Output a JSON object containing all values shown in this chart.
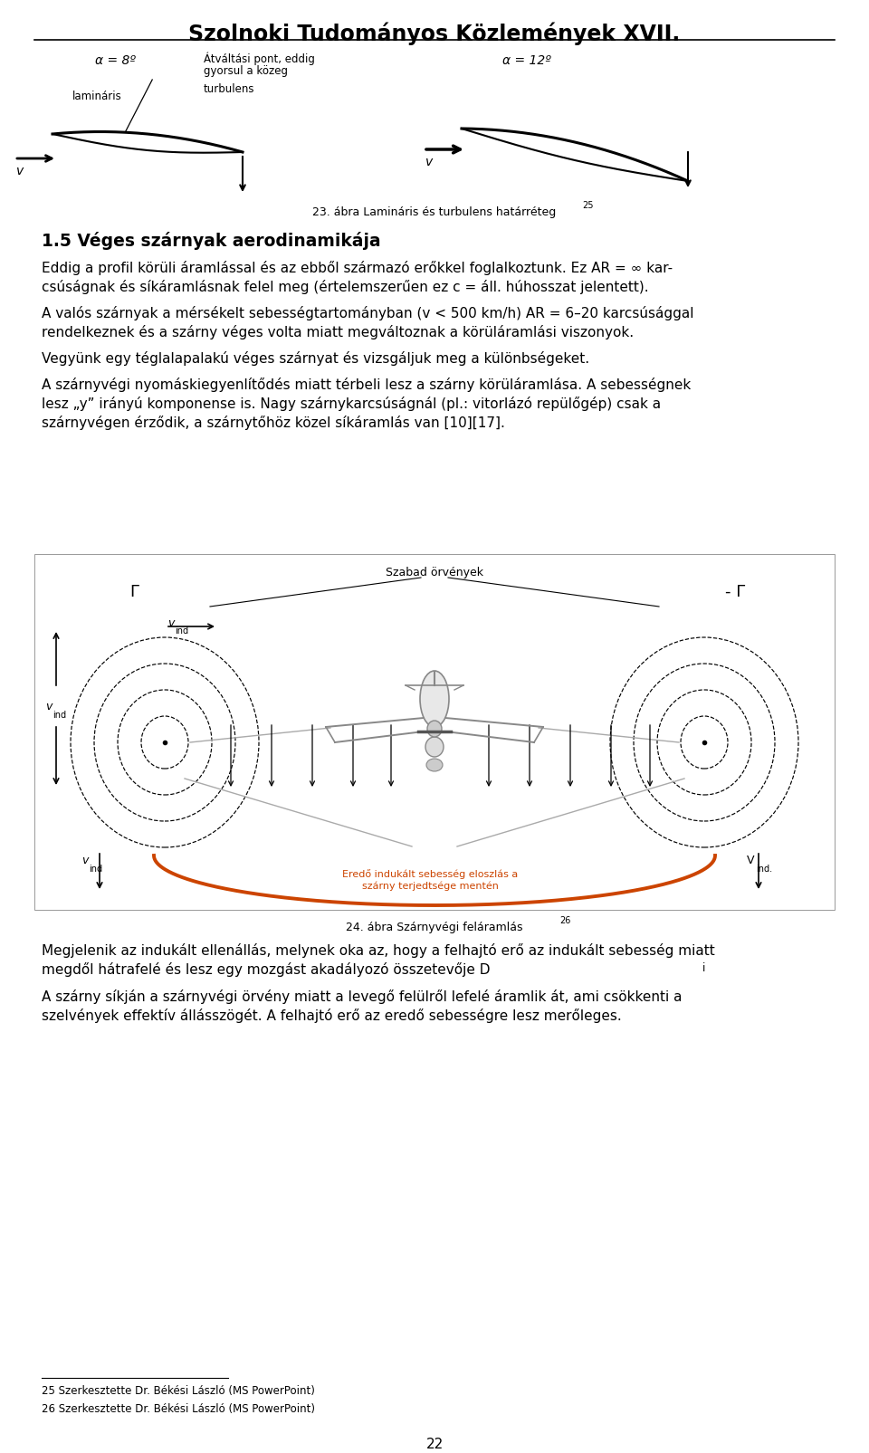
{
  "title": "Szolnoki Tudományos Közlemények XVII.",
  "fig_width": 9.6,
  "fig_height": 16.05,
  "bg_color": "#ffffff",
  "text_color": "#000000",
  "section_title": "1.5 Véges szárnyak aerodinamikája",
  "para1_l1": "Eddig a profil körüli áramlással és az ebből származó erőkkel foglalkoztunk. Ez AR = ∞ kar-",
  "para1_l2": "csúságnak és síkáramlásnak felel meg (értelemszerűen ez c = áll. húhosszat jelentett).",
  "para2_l1": "A valós szárnyak a mérsékelt sebességtartományban (v < 500 km/h) AR = 6–20 karcsúsággal",
  "para2_l2": "rendelkeznek és a szárny véges volta miatt megváltoznak a körüláramlási viszonyok.",
  "para3": "Vegyünk egy téglalapalakú véges szárnyat és vizsgáljuk meg a különbségeket.",
  "para4_l1": "A szárnyvégi nyomáskiegyenlítődés miatt térbeli lesz a szárny körüláramlása. A sebességnek",
  "para4_l2": "lesz „y” irányú komponense is. Nagy szárnykarcsúságnál (pl.: vitorlázó repülőgép) csak a",
  "para4_l3": "szárnyvégen érződik, a szárnytőhöz közel síkáramlás van [10][17].",
  "fig23_caption": "23. ábra Lamináris és turbulens határréteg",
  "fig23_superscript": "25",
  "fig24_caption": "24. ábra Szárnyvégi feláramlás",
  "fig24_superscript": "26",
  "footnote1": "25 Szerkesztette Dr. Békési László (MS PowerPoint)",
  "footnote2": "26 Szerkesztette Dr. Békési László (MS PowerPoint)",
  "page_number": "22",
  "orange_color": "#cc4400",
  "gray_color": "#888888",
  "light_gray": "#aaaaaa",
  "para5_l1": "Megjelenik az indukált ellenállás, melynek oka az, hogy a felhajtó erő az indukált sebesség miatt",
  "para5_l2": "megdől hátrafelé és lesz egy mozgást akadályozó összetevője D",
  "para5_sub": "i",
  "para5_end": ".",
  "para6_l1": "A szárny síkján a szárnyvégi örvény miatt a levegő felülről lefelé áramlik át, ami csökkenti a",
  "para6_l2": "szelvények effektív állásszögét. A felhajtó erő az eredő sebességre lesz merőleges.",
  "alpha_left": "α = 8º",
  "alpha_right": "α = 12º",
  "label_atv": "Átváltási pont, eddig",
  "label_gyors": "gyorsul a közeg",
  "label_turb": "turbulens",
  "label_lam": "lamináris",
  "label_v": "v",
  "label_gamma_left": "Γ",
  "label_gamma_right": "- Γ",
  "label_szabad": "Szabad örvények",
  "label_vind": "v",
  "label_ind": "ind",
  "label_vind_dot": "V",
  "label_ind_dot": "ind.",
  "label_eredő": "Eredő indukált sebesség eloszlás a",
  "label_szarny": "szárny terjedtsége mentén"
}
